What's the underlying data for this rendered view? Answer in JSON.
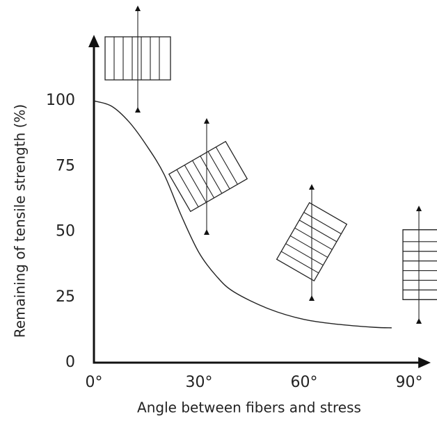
{
  "chart_data": {
    "type": "line",
    "x_label": "Angle between fibers and stress",
    "y_label": "Remaining of tensile strength (%)",
    "x": [
      0,
      5,
      10,
      15,
      20,
      25,
      30,
      35,
      40,
      50,
      60,
      70,
      80,
      85
    ],
    "series": [
      {
        "color": "#222222",
        "values": [
          100,
          98,
          92,
          83,
          72,
          56,
          42,
          33,
          27,
          20.5,
          16.5,
          14.6,
          13.5,
          13.3
        ]
      }
    ],
    "xlim": [
      0,
      93
    ],
    "ylim": [
      0,
      121
    ],
    "xticks": [
      {
        "value": 0,
        "label": "0°"
      },
      {
        "value": 30,
        "label": "30°"
      },
      {
        "value": 60,
        "label": "60°"
      },
      {
        "value": 90,
        "label": "90°"
      }
    ],
    "yticks": [
      0,
      25,
      50,
      75,
      100
    ],
    "grid": false
  }
}
